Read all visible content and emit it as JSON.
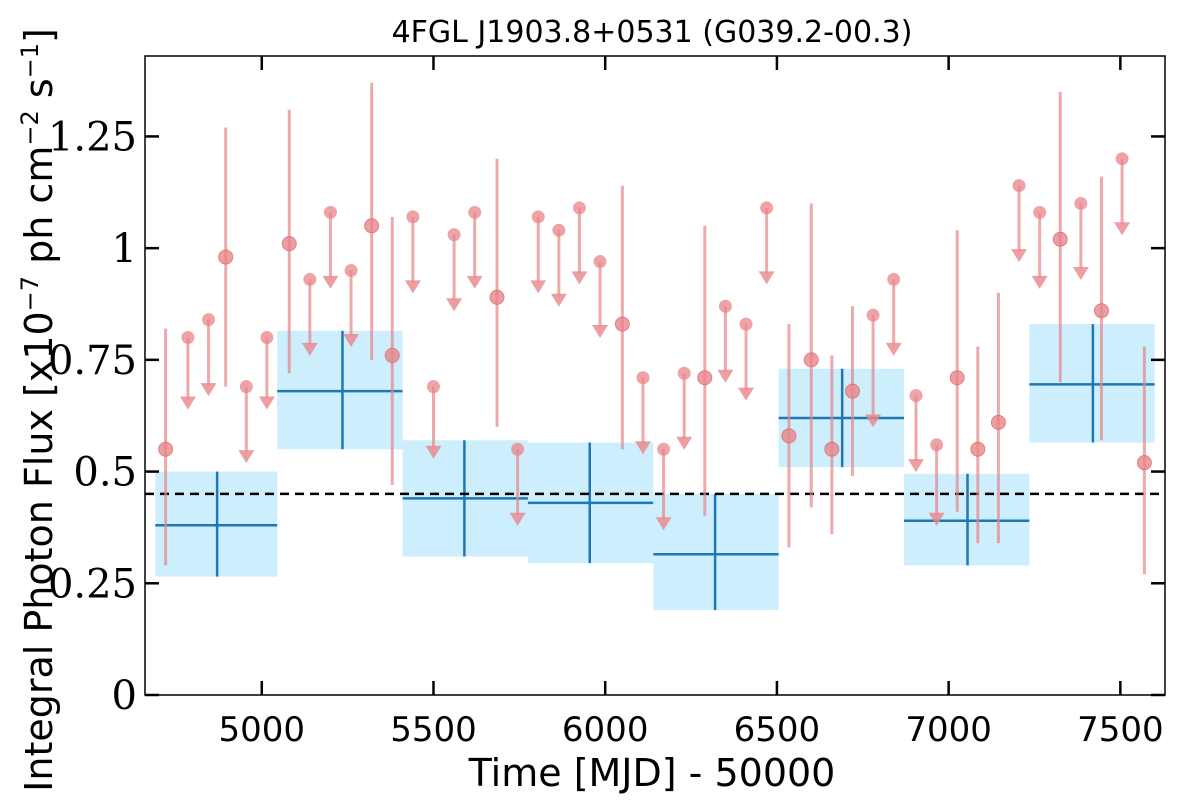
{
  "chart_data": {
    "type": "scatter",
    "title": "4FGL J1903.8+0531 (G039.2-00.3)",
    "xlabel": "Time [MJD] - 50000",
    "ylabel": "Integral Photon Flux [x10^-7 ph cm^-2 s^-1]",
    "ylabel_parts": {
      "base": "Integral Photon Flux [x10",
      "exp1": "−7",
      "mid": " ph cm",
      "exp2": "−2",
      "mid2": " s",
      "exp3": "−1",
      "end": "]"
    },
    "xlim": [
      4660,
      7630
    ],
    "ylim": [
      0,
      1.43
    ],
    "x_ticks": [
      5000,
      5500,
      6000,
      6500,
      7000,
      7500
    ],
    "y_ticks": [
      0,
      0.25,
      0.5,
      0.75,
      1,
      1.25
    ],
    "y_tick_labels": [
      "0",
      "0.25",
      "0.5",
      "0.75",
      "1",
      "1.25"
    ],
    "reference_line": {
      "y": 0.45,
      "style": "dashed",
      "color": "#000000"
    },
    "colors": {
      "points": "#e8868a",
      "bins": "#1f77b4",
      "bin_fill": "#cdeefc"
    },
    "upper_limits": [
      {
        "x": 4785,
        "y": 0.8
      },
      {
        "x": 4845,
        "y": 0.84
      },
      {
        "x": 4955,
        "y": 0.69
      },
      {
        "x": 5015,
        "y": 0.8
      },
      {
        "x": 5140,
        "y": 0.93
      },
      {
        "x": 5200,
        "y": 1.08
      },
      {
        "x": 5260,
        "y": 0.95
      },
      {
        "x": 5440,
        "y": 1.07
      },
      {
        "x": 5500,
        "y": 0.69
      },
      {
        "x": 5560,
        "y": 1.03
      },
      {
        "x": 5620,
        "y": 1.08
      },
      {
        "x": 5745,
        "y": 0.55
      },
      {
        "x": 5805,
        "y": 1.07
      },
      {
        "x": 5865,
        "y": 1.04
      },
      {
        "x": 5925,
        "y": 1.09
      },
      {
        "x": 5985,
        "y": 0.97
      },
      {
        "x": 6110,
        "y": 0.71
      },
      {
        "x": 6170,
        "y": 0.55
      },
      {
        "x": 6230,
        "y": 0.72
      },
      {
        "x": 6350,
        "y": 0.87
      },
      {
        "x": 6410,
        "y": 0.83
      },
      {
        "x": 6470,
        "y": 1.09
      },
      {
        "x": 6780,
        "y": 0.85
      },
      {
        "x": 6840,
        "y": 0.93
      },
      {
        "x": 6905,
        "y": 0.67
      },
      {
        "x": 6965,
        "y": 0.56
      },
      {
        "x": 7205,
        "y": 1.14
      },
      {
        "x": 7265,
        "y": 1.08
      },
      {
        "x": 7385,
        "y": 1.1
      },
      {
        "x": 7505,
        "y": 1.2
      }
    ],
    "ul_arrow_ends": [
      0.65,
      0.68,
      0.53,
      0.65,
      0.77,
      0.92,
      0.79,
      0.91,
      0.54,
      0.87,
      0.92,
      0.39,
      0.91,
      0.88,
      0.93,
      0.81,
      0.55,
      0.38,
      0.56,
      0.71,
      0.67,
      0.93,
      0.61,
      0.77,
      0.51,
      0.39,
      0.98,
      0.92,
      0.94,
      1.04
    ],
    "detections": [
      {
        "x": 4720,
        "y": 0.55,
        "lo": 0.29,
        "hi": 0.82
      },
      {
        "x": 4895,
        "y": 0.98,
        "lo": 0.69,
        "hi": 1.27
      },
      {
        "x": 5080,
        "y": 1.01,
        "lo": 0.72,
        "hi": 1.31
      },
      {
        "x": 5320,
        "y": 1.05,
        "lo": 0.75,
        "hi": 1.37
      },
      {
        "x": 5380,
        "y": 0.76,
        "lo": 0.47,
        "hi": 1.07
      },
      {
        "x": 5685,
        "y": 0.89,
        "lo": 0.6,
        "hi": 1.2
      },
      {
        "x": 6050,
        "y": 0.83,
        "lo": 0.55,
        "hi": 1.14
      },
      {
        "x": 6290,
        "y": 0.71,
        "lo": 0.4,
        "hi": 1.05
      },
      {
        "x": 6535,
        "y": 0.58,
        "lo": 0.33,
        "hi": 0.83
      },
      {
        "x": 6600,
        "y": 0.75,
        "lo": 0.42,
        "hi": 1.1
      },
      {
        "x": 6660,
        "y": 0.55,
        "lo": 0.36,
        "hi": 0.76
      },
      {
        "x": 6720,
        "y": 0.68,
        "lo": 0.49,
        "hi": 0.87
      },
      {
        "x": 7025,
        "y": 0.71,
        "lo": 0.41,
        "hi": 1.04
      },
      {
        "x": 7085,
        "y": 0.55,
        "lo": 0.34,
        "hi": 0.78
      },
      {
        "x": 7145,
        "y": 0.61,
        "lo": 0.34,
        "hi": 0.9
      },
      {
        "x": 7325,
        "y": 1.02,
        "lo": 0.7,
        "hi": 1.35
      },
      {
        "x": 7445,
        "y": 0.86,
        "lo": 0.57,
        "hi": 1.16
      },
      {
        "x": 7570,
        "y": 0.52,
        "lo": 0.27,
        "hi": 0.78
      }
    ],
    "bins": [
      {
        "x0": 4690,
        "x1": 5045,
        "xc": 4870,
        "y": 0.38,
        "ylo": 0.265,
        "yhi": 0.5
      },
      {
        "x0": 5045,
        "x1": 5410,
        "xc": 5235,
        "y": 0.68,
        "ylo": 0.55,
        "yhi": 0.815
      },
      {
        "x0": 5410,
        "x1": 5775,
        "xc": 5590,
        "y": 0.44,
        "ylo": 0.31,
        "yhi": 0.57
      },
      {
        "x0": 5775,
        "x1": 6140,
        "xc": 5955,
        "y": 0.43,
        "ylo": 0.295,
        "yhi": 0.565
      },
      {
        "x0": 6140,
        "x1": 6505,
        "xc": 6320,
        "y": 0.315,
        "ylo": 0.19,
        "yhi": 0.45
      },
      {
        "x0": 6505,
        "x1": 6870,
        "xc": 6690,
        "y": 0.62,
        "ylo": 0.51,
        "yhi": 0.73
      },
      {
        "x0": 6870,
        "x1": 7235,
        "xc": 7055,
        "y": 0.39,
        "ylo": 0.29,
        "yhi": 0.495
      },
      {
        "x0": 7235,
        "x1": 7600,
        "xc": 7420,
        "y": 0.695,
        "ylo": 0.565,
        "yhi": 0.83
      }
    ]
  }
}
